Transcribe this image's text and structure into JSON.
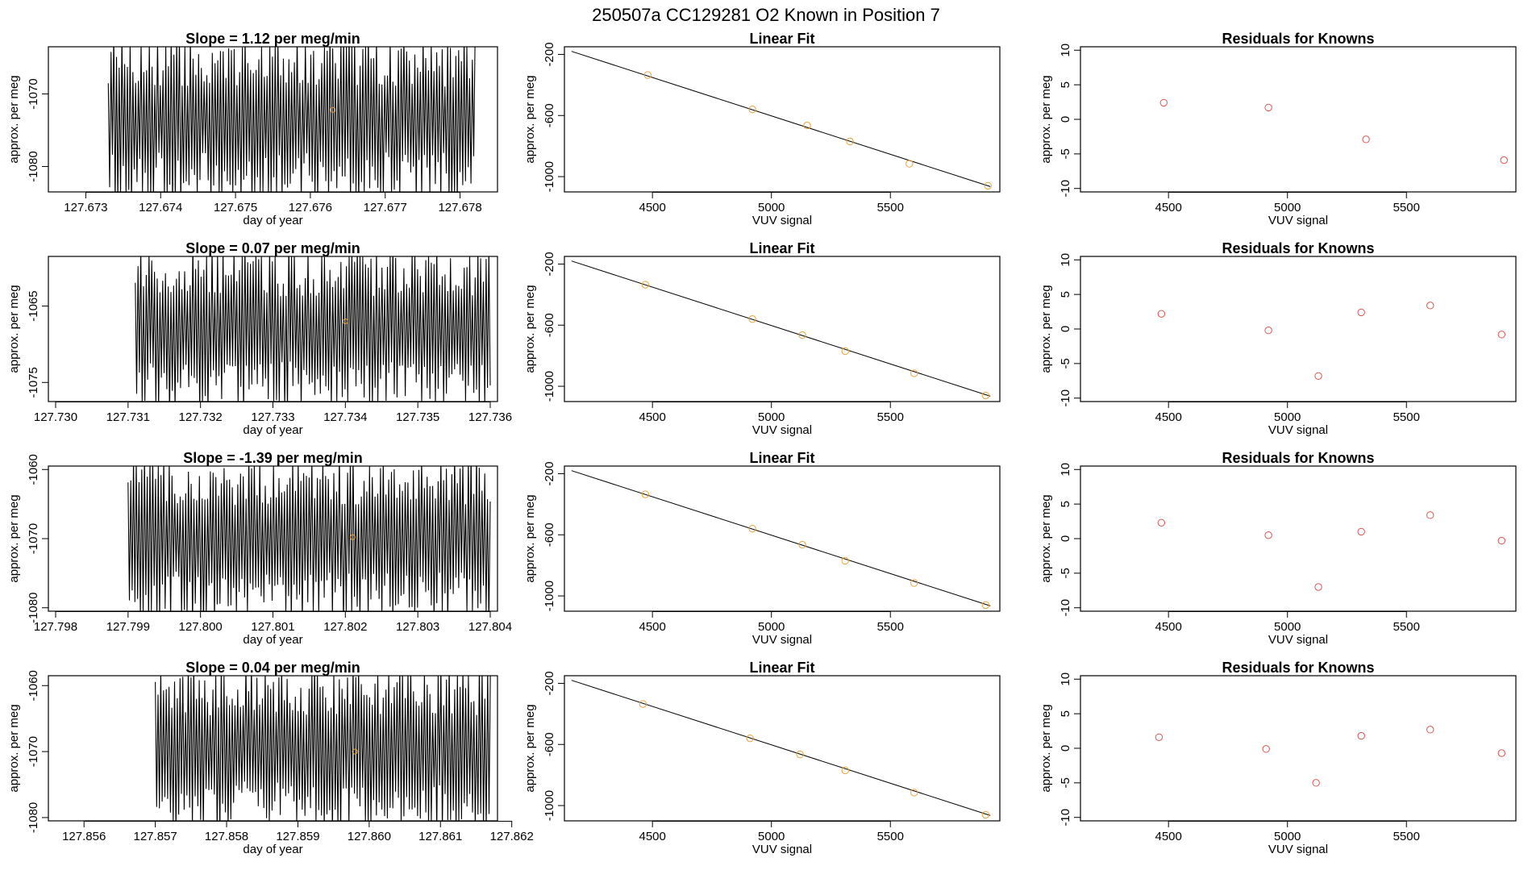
{
  "title": "250507a      CC129281    O2 Known in Position  7",
  "colors": {
    "trace": "#000000",
    "point": "#d9534f",
    "fit_point": "#e8a33a",
    "line": "#000000",
    "frame": "#000000"
  },
  "chart_data": [
    {
      "type": "line",
      "title": "Slope =  1.12  per meg/min",
      "xlabel": "day of year",
      "ylabel": "approx. per meg",
      "xlim": [
        127.6725,
        127.6785
      ],
      "ylim": [
        -1083.5,
        -1063.5
      ],
      "xticks": [
        127.673,
        127.674,
        127.675,
        127.676,
        127.677,
        127.678
      ],
      "xtick_labels": [
        "127.673",
        "127.674",
        "127.675",
        "127.676",
        "127.677",
        "127.678"
      ],
      "yticks": [
        -1070,
        -1080
      ],
      "ytick_labels": [
        "-1070",
        "-1080"
      ],
      "trace": {
        "x_start": 127.6733,
        "x_end": 127.6782,
        "min": -1083.5,
        "max": -1063.5
      },
      "marker": {
        "x": 127.6763,
        "y": -1072.2
      }
    },
    {
      "type": "scatter",
      "title": "Linear Fit",
      "xlabel": "VUV signal",
      "ylabel": "approx. per meg",
      "xlim": [
        4130,
        5960
      ],
      "ylim": [
        -1100,
        -150
      ],
      "xticks": [
        4500,
        5000,
        5500
      ],
      "xtick_labels": [
        "4500",
        "5000",
        "5500"
      ],
      "yticks": [
        -200,
        -600,
        -1000
      ],
      "ytick_labels": [
        "-200",
        "-600",
        "-1000"
      ],
      "points": {
        "x": [
          4480,
          4920,
          5150,
          5330,
          5580,
          5910
        ],
        "y": [
          -335,
          -560,
          -665,
          -770,
          -915,
          -1060
        ]
      },
      "fit": {
        "x": [
          4160,
          5920
        ],
        "y": [
          -180,
          -1065
        ]
      }
    },
    {
      "type": "scatter",
      "title": "Residuals for Knowns",
      "xlabel": "VUV signal",
      "ylabel": "approx. per meg",
      "xlim": [
        4130,
        5960
      ],
      "ylim": [
        -10.5,
        10.5
      ],
      "xticks": [
        4500,
        5000,
        5500
      ],
      "xtick_labels": [
        "4500",
        "5000",
        "5500"
      ],
      "yticks": [
        10,
        5,
        0,
        -5,
        -10
      ],
      "ytick_labels": [
        "10",
        "5",
        "0",
        "-5",
        "-10"
      ],
      "points": {
        "x": [
          4480,
          4920,
          5330,
          5910
        ],
        "y": [
          2.4,
          1.7,
          -2.9,
          -5.9
        ]
      }
    },
    {
      "type": "line",
      "title": "Slope =  0.07  per meg/min",
      "xlabel": "day of year",
      "ylabel": "approx. per meg",
      "xlim": [
        127.7299,
        127.7361
      ],
      "ylim": [
        -1077.5,
        -1058.5
      ],
      "xticks": [
        127.73,
        127.731,
        127.732,
        127.733,
        127.734,
        127.735,
        127.736
      ],
      "xtick_labels": [
        "127.730",
        "127.731",
        "127.732",
        "127.733",
        "127.734",
        "127.735",
        "127.736"
      ],
      "yticks": [
        -1065,
        -1075
      ],
      "ytick_labels": [
        "-1065",
        "-1075"
      ],
      "trace": {
        "x_start": 127.7311,
        "x_end": 127.736,
        "min": -1077.5,
        "max": -1058.5
      },
      "marker": {
        "x": 127.734,
        "y": -1067.0
      }
    },
    {
      "type": "scatter",
      "title": "Linear Fit",
      "xlabel": "VUV signal",
      "ylabel": "approx. per meg",
      "xlim": [
        4130,
        5960
      ],
      "ylim": [
        -1100,
        -150
      ],
      "xticks": [
        4500,
        5000,
        5500
      ],
      "xtick_labels": [
        "4500",
        "5000",
        "5500"
      ],
      "yticks": [
        -200,
        -600,
        -1000
      ],
      "ytick_labels": [
        "-200",
        "-600",
        "-1000"
      ],
      "points": {
        "x": [
          4470,
          4920,
          5130,
          5310,
          5600,
          5900
        ],
        "y": [
          -335,
          -560,
          -665,
          -770,
          -915,
          -1060
        ]
      },
      "fit": {
        "x": [
          4160,
          5920
        ],
        "y": [
          -180,
          -1065
        ]
      }
    },
    {
      "type": "scatter",
      "title": "Residuals for Knowns",
      "xlabel": "VUV signal",
      "ylabel": "approx. per meg",
      "xlim": [
        4130,
        5960
      ],
      "ylim": [
        -10.5,
        10.5
      ],
      "xticks": [
        4500,
        5000,
        5500
      ],
      "xtick_labels": [
        "4500",
        "5000",
        "5500"
      ],
      "yticks": [
        10,
        5,
        0,
        -5,
        -10
      ],
      "ytick_labels": [
        "10",
        "5",
        "0",
        "-5",
        "-10"
      ],
      "points": {
        "x": [
          4470,
          4920,
          5130,
          5310,
          5600,
          5900
        ],
        "y": [
          2.2,
          -0.2,
          -6.8,
          2.4,
          3.4,
          -0.8
        ]
      }
    },
    {
      "type": "line",
      "title": "Slope =  -1.39  per meg/min",
      "xlabel": "day of year",
      "ylabel": "approx. per meg",
      "xlim": [
        127.7979,
        127.8041
      ],
      "ylim": [
        -1080.5,
        -1059.5
      ],
      "xticks": [
        127.798,
        127.799,
        127.8,
        127.801,
        127.802,
        127.803,
        127.804
      ],
      "xtick_labels": [
        "127.798",
        "127.799",
        "127.800",
        "127.801",
        "127.802",
        "127.803",
        "127.804"
      ],
      "yticks": [
        -1060,
        -1070,
        -1080
      ],
      "ytick_labels": [
        "-1060",
        "-1070",
        "-1080"
      ],
      "trace": {
        "x_start": 127.799,
        "x_end": 127.804,
        "min": -1080.5,
        "max": -1059.5
      },
      "marker": {
        "x": 127.8021,
        "y": -1069.8
      }
    },
    {
      "type": "scatter",
      "title": "Linear Fit",
      "xlabel": "VUV signal",
      "ylabel": "approx. per meg",
      "xlim": [
        4130,
        5960
      ],
      "ylim": [
        -1100,
        -150
      ],
      "xticks": [
        4500,
        5000,
        5500
      ],
      "xtick_labels": [
        "4500",
        "5000",
        "5500"
      ],
      "yticks": [
        -200,
        -600,
        -1000
      ],
      "ytick_labels": [
        "-200",
        "-600",
        "-1000"
      ],
      "points": {
        "x": [
          4470,
          4920,
          5130,
          5310,
          5600,
          5900
        ],
        "y": [
          -335,
          -560,
          -665,
          -770,
          -915,
          -1060
        ]
      },
      "fit": {
        "x": [
          4160,
          5920
        ],
        "y": [
          -180,
          -1065
        ]
      }
    },
    {
      "type": "scatter",
      "title": "Residuals for Knowns",
      "xlabel": "VUV signal",
      "ylabel": "approx. per meg",
      "xlim": [
        4130,
        5960
      ],
      "ylim": [
        -10.5,
        10.5
      ],
      "xticks": [
        4500,
        5000,
        5500
      ],
      "xtick_labels": [
        "4500",
        "5000",
        "5500"
      ],
      "yticks": [
        10,
        5,
        0,
        -5,
        -10
      ],
      "ytick_labels": [
        "10",
        "5",
        "0",
        "-5",
        "-10"
      ],
      "points": {
        "x": [
          4470,
          4920,
          5130,
          5310,
          5600,
          5900
        ],
        "y": [
          2.3,
          0.5,
          -7.0,
          1.0,
          3.4,
          -0.3
        ]
      }
    },
    {
      "type": "line",
      "title": "Slope =  0.04  per meg/min",
      "xlabel": "day of year",
      "ylabel": "approx. per meg",
      "xlim": [
        127.8555,
        127.8618
      ],
      "ylim": [
        -1080.5,
        -1058.5
      ],
      "xticks": [
        127.856,
        127.857,
        127.858,
        127.859,
        127.86,
        127.861,
        127.862
      ],
      "xtick_labels": [
        "127.856",
        "127.857",
        "127.858",
        "127.859",
        "127.860",
        "127.861",
        "127.862"
      ],
      "yticks": [
        -1060,
        -1070,
        -1080
      ],
      "ytick_labels": [
        "-1060",
        "-1070",
        "-1080"
      ],
      "trace": {
        "x_start": 127.857,
        "x_end": 127.8617,
        "min": -1080.5,
        "max": -1058.5
      },
      "marker": {
        "x": 127.8598,
        "y": -1070.0
      }
    },
    {
      "type": "scatter",
      "title": "Linear Fit",
      "xlabel": "VUV signal",
      "ylabel": "approx. per meg",
      "xlim": [
        4130,
        5960
      ],
      "ylim": [
        -1100,
        -150
      ],
      "xticks": [
        4500,
        5000,
        5500
      ],
      "xtick_labels": [
        "4500",
        "5000",
        "5500"
      ],
      "yticks": [
        -200,
        -600,
        -1000
      ],
      "ytick_labels": [
        "-200",
        "-600",
        "-1000"
      ],
      "points": {
        "x": [
          4460,
          4910,
          5120,
          5310,
          5600,
          5900
        ],
        "y": [
          -335,
          -560,
          -665,
          -770,
          -915,
          -1060
        ]
      },
      "fit": {
        "x": [
          4160,
          5920
        ],
        "y": [
          -180,
          -1065
        ]
      }
    },
    {
      "type": "scatter",
      "title": "Residuals for Knowns",
      "xlabel": "VUV signal",
      "ylabel": "approx. per meg",
      "xlim": [
        4130,
        5960
      ],
      "ylim": [
        -10.5,
        10.5
      ],
      "xticks": [
        4500,
        5000,
        5500
      ],
      "xtick_labels": [
        "4500",
        "5000",
        "5500"
      ],
      "yticks": [
        10,
        5,
        0,
        -5,
        -10
      ],
      "ytick_labels": [
        "10",
        "5",
        "0",
        "-5",
        "-10"
      ],
      "points": {
        "x": [
          4460,
          4910,
          5120,
          5310,
          5600,
          5900
        ],
        "y": [
          1.6,
          -0.1,
          -5.0,
          1.8,
          2.7,
          -0.7
        ]
      }
    }
  ]
}
